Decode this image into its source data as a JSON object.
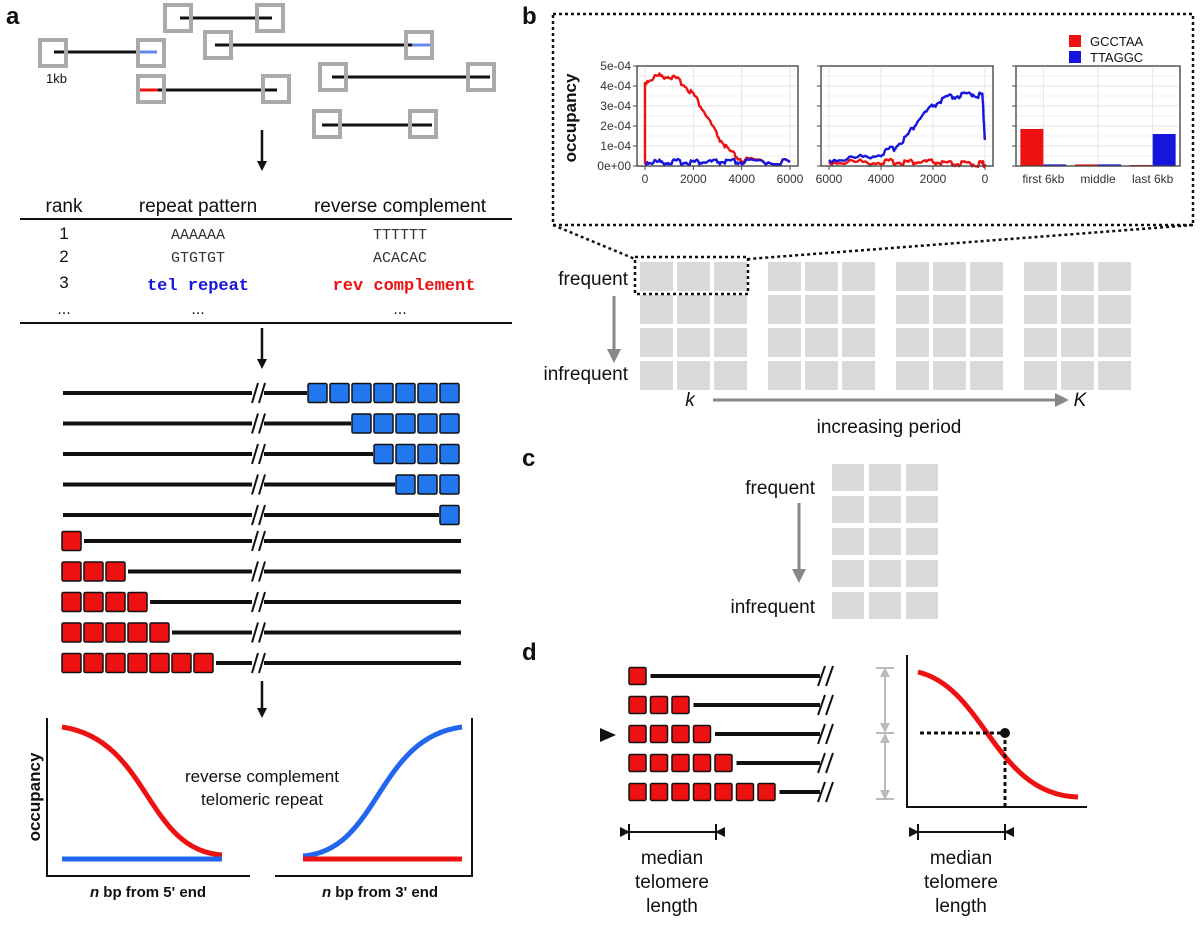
{
  "panel_labels": {
    "a": "a",
    "b": "b",
    "c": "c",
    "d": "d"
  },
  "panel_a": {
    "scale_label": "1kb",
    "table": {
      "headers": {
        "rank": "rank",
        "pattern": "repeat pattern",
        "revcomp": "reverse complement"
      },
      "rows": [
        {
          "rank": "1",
          "pattern": "AAAAAA",
          "revcomp": "TTTTTT"
        },
        {
          "rank": "2",
          "pattern": "GTGTGT",
          "revcomp": "ACACAC"
        },
        {
          "rank": "3",
          "pattern": "tel repeat",
          "revcomp": "rev complement"
        }
      ],
      "ellipsis": {
        "rank": "...",
        "pattern": "...",
        "revcomp": "..."
      }
    },
    "blue_repeat_counts": [
      7,
      5,
      4,
      3,
      1
    ],
    "red_repeat_counts": [
      1,
      3,
      4,
      5,
      7
    ],
    "legend_revcomp": "reverse complement",
    "legend_telrepeat": "telomeric repeat",
    "ylabel": "occupancy",
    "xlabel_5prime": "bp from 5' end",
    "xlabel_3prime": "bp from 3' end",
    "n_label": "n"
  },
  "panel_b": {
    "ylabel": "occupancy",
    "legend": [
      {
        "name": "GCCTAA",
        "color": "#ee1111"
      },
      {
        "name": "TTAGGC",
        "color": "#1515dd"
      }
    ],
    "row_labels": {
      "top": "frequent",
      "bottom": "infrequent"
    },
    "period": {
      "small": "k",
      "large": "K",
      "label": "increasing period"
    }
  },
  "panel_c": {
    "top": "frequent",
    "bottom": "infrequent"
  },
  "panel_d": {
    "left_caption": [
      "median",
      "telomere",
      "length"
    ],
    "right_caption": [
      "median",
      "telomere",
      "length"
    ],
    "red_repeat_counts": [
      1,
      3,
      4,
      5,
      7
    ]
  },
  "chart_data": [
    {
      "type": "line",
      "x": [
        0,
        500,
        1000,
        1500,
        2000,
        2500,
        3000,
        3500,
        4000,
        5000,
        6000
      ],
      "xlim": [
        0,
        6000
      ],
      "xticks": [
        "0",
        "2000",
        "4000",
        "6000"
      ],
      "ylim": [
        0,
        0.0005
      ],
      "yticks": [
        "0e+00",
        "1e-04",
        "2e-04",
        "3e-04",
        "4e-04",
        "5e-04"
      ],
      "ylabel": "occupancy",
      "series": [
        {
          "name": "GCCTAA",
          "color": "#ee1111",
          "values": [
            0.00042,
            0.00045,
            0.00045,
            0.00042,
            0.00036,
            0.00026,
            0.00015,
            7e-05,
            3e-05,
            2e-05,
            2e-05
          ]
        },
        {
          "name": "TTAGGC",
          "color": "#1515dd",
          "values": [
            2e-05,
            2e-05,
            2e-05,
            2e-05,
            2e-05,
            2e-05,
            2e-05,
            2e-05,
            2e-05,
            2e-05,
            2e-05
          ]
        }
      ]
    },
    {
      "type": "line",
      "x": [
        6000,
        5000,
        4000,
        3500,
        3000,
        2500,
        2000,
        1500,
        1000,
        500,
        100,
        0
      ],
      "xlim": [
        6000,
        0
      ],
      "xticks": [
        "6000",
        "4000",
        "2000",
        "0"
      ],
      "ylim": [
        0,
        0.0005
      ],
      "series": [
        {
          "name": "GCCTAA",
          "color": "#ee1111",
          "values": [
            2e-05,
            2e-05,
            2e-05,
            2e-05,
            2e-05,
            2e-05,
            2e-05,
            1e-05,
            1e-05,
            1e-05,
            1e-05,
            1e-05
          ]
        },
        {
          "name": "TTAGGC",
          "color": "#1515dd",
          "values": [
            3e-05,
            4e-05,
            6e-05,
            9e-05,
            0.00015,
            0.00024,
            0.0003,
            0.00034,
            0.00035,
            0.00036,
            0.00035,
            0.00013
          ]
        }
      ]
    },
    {
      "type": "bar",
      "categories": [
        "first 6kb",
        "middle",
        "last 6kb"
      ],
      "ylim": [
        0,
        0.0005
      ],
      "series": [
        {
          "name": "GCCTAA",
          "color": "#ee1111",
          "values": [
            0.000185,
            8e-06,
            5e-06
          ]
        },
        {
          "name": "TTAGGC",
          "color": "#1515dd",
          "values": [
            8e-06,
            8e-06,
            0.00016
          ]
        }
      ]
    }
  ]
}
